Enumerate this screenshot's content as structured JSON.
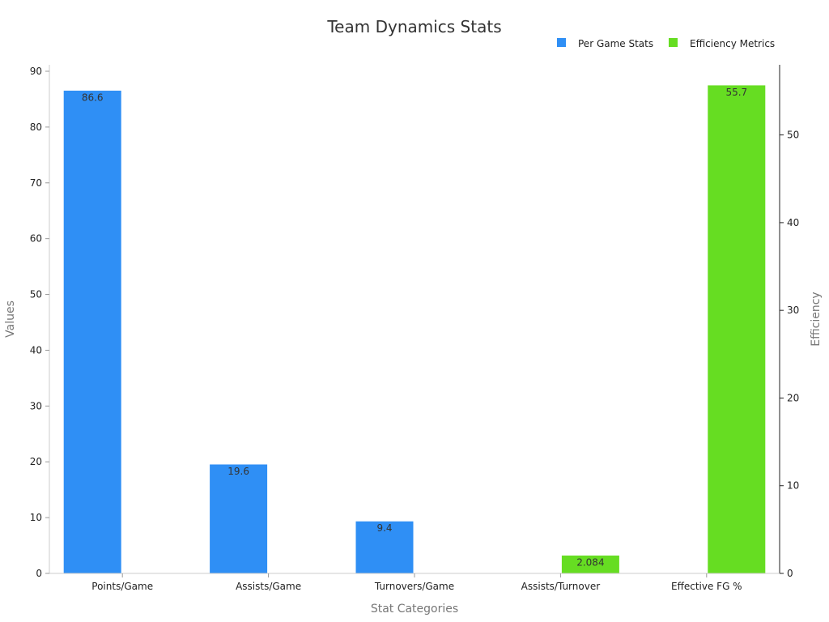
{
  "chart_data": {
    "type": "bar",
    "title": "Team Dynamics Stats",
    "xlabel": "Stat Categories",
    "ylabel": "Values",
    "y2label": "Efficiency",
    "categories": [
      "Points/Game",
      "Assists/Game",
      "Turnovers/Game",
      "Assists/Turnover",
      "Effective FG %"
    ],
    "ylim": [
      0,
      90
    ],
    "y2lim": [
      0,
      58
    ],
    "yticks": [
      0,
      10,
      20,
      30,
      40,
      50,
      60,
      70,
      80,
      90
    ],
    "y2ticks": [
      0,
      10,
      20,
      30,
      40,
      50
    ],
    "legend_position": "top-right",
    "series": [
      {
        "name": "Per Game Stats",
        "axis": "left",
        "color": "#2f8ff5",
        "values": [
          86.6,
          19.6,
          9.4,
          null,
          null
        ],
        "labels": [
          "86.6",
          "19.6",
          "9.4",
          "",
          ""
        ]
      },
      {
        "name": "Efficiency Metrics",
        "axis": "right",
        "color": "#66dd22",
        "values": [
          null,
          null,
          null,
          2.084,
          55.7
        ],
        "labels": [
          "",
          "",
          "",
          "2.084",
          "55.7"
        ]
      }
    ]
  }
}
